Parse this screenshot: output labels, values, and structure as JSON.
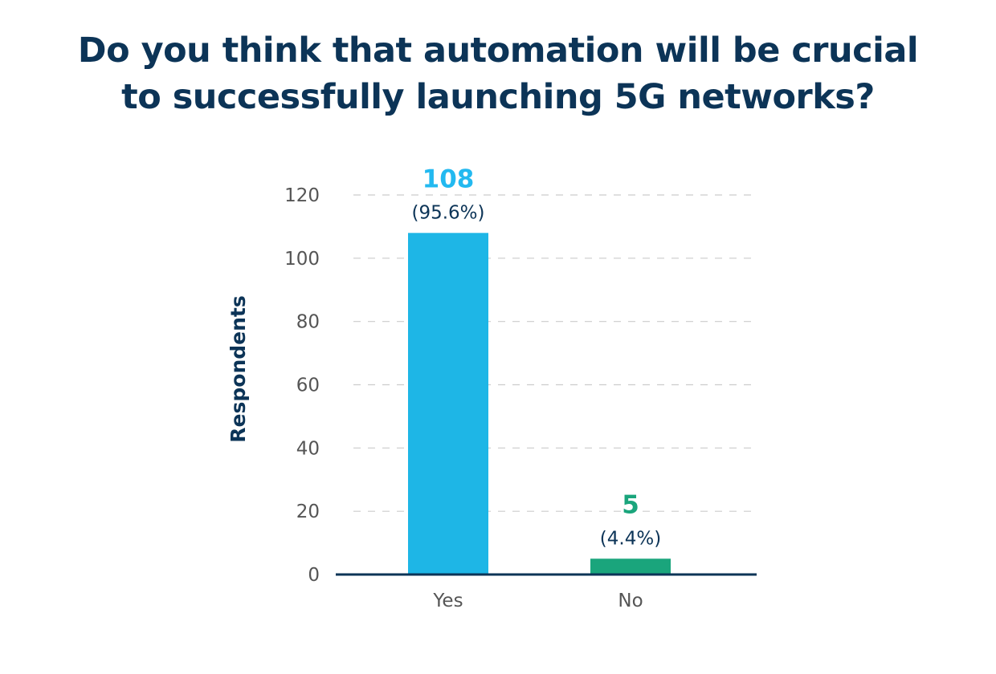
{
  "title_lines": [
    "Do you think that automation will be crucial",
    "to successfully launching 5G networks?"
  ],
  "chart_data": {
    "type": "bar",
    "title": "Do you think that automation will be crucial to successfully launching 5G networks?",
    "xlabel": "",
    "ylabel": "Respondents",
    "categories": [
      "Yes",
      "No"
    ],
    "values": [
      108,
      5
    ],
    "value_labels": [
      "108",
      "5"
    ],
    "percent_labels": [
      "(95.6%)",
      "(4.4%)"
    ],
    "bar_colors": [
      "#1eb6e6",
      "#1aa57c"
    ],
    "value_label_colors": [
      "#23b9f0",
      "#1aa57c"
    ],
    "ylim": [
      0,
      120
    ],
    "yticks": [
      0,
      20,
      40,
      60,
      80,
      100,
      120
    ],
    "grid": true,
    "legend": "none"
  },
  "colors": {
    "title": "#0c3457",
    "axis": "#0c3457",
    "grid": "#cccccc",
    "tick_text": "#555555"
  }
}
